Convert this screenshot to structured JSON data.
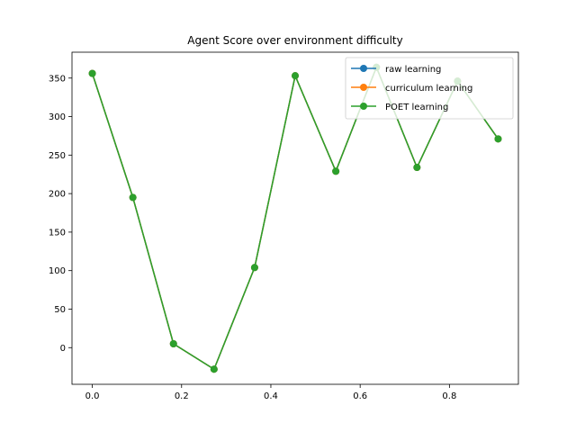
{
  "chart_data": {
    "type": "line",
    "title": "Agent Score over environment difficulty",
    "xlabel": "",
    "ylabel": "",
    "x": [
      0.0,
      0.0909,
      0.1818,
      0.2727,
      0.3636,
      0.4545,
      0.5455,
      0.6364,
      0.7273,
      0.8182,
      0.9091
    ],
    "series": [
      {
        "name": "raw learning",
        "color": "#1f77b4",
        "values": [
          356,
          195,
          5,
          -28,
          104,
          353,
          229,
          364,
          234,
          346,
          271
        ]
      },
      {
        "name": "curriculum learning",
        "color": "#ff7f0e",
        "values": [
          356,
          195,
          5,
          -28,
          104,
          353,
          229,
          364,
          234,
          346,
          271
        ]
      },
      {
        "name": "POET learning",
        "color": "#2ca02c",
        "values": [
          356,
          195,
          5,
          -28,
          104,
          353,
          229,
          364,
          234,
          346,
          271
        ]
      }
    ],
    "xlim": [
      -0.0455,
      0.9545
    ],
    "ylim": [
      -47.6,
      383.6
    ],
    "xticks": [
      0.0,
      0.2,
      0.4,
      0.6,
      0.8
    ],
    "xtick_labels": [
      "0.0",
      "0.2",
      "0.4",
      "0.6",
      "0.8"
    ],
    "yticks": [
      0,
      50,
      100,
      150,
      200,
      250,
      300,
      350
    ],
    "ytick_labels": [
      "0",
      "50",
      "100",
      "150",
      "200",
      "250",
      "300",
      "350"
    ],
    "grid": false,
    "legend_position": "top-right"
  }
}
